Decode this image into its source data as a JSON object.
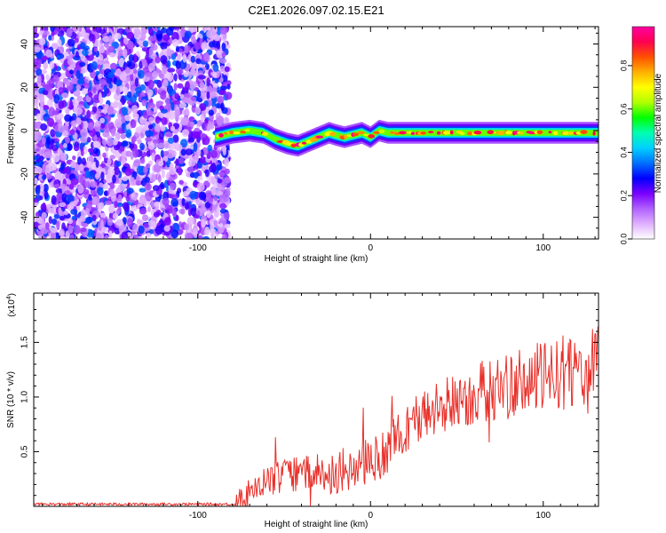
{
  "title": "C2E1.2026.097.02.15.E21",
  "chart_data": [
    {
      "type": "heatmap",
      "xlabel": "Height of straight line (km)",
      "ylabel": "Frequency (Hz)",
      "xlim": [
        -195,
        132
      ],
      "ylim": [
        -50,
        48
      ],
      "xticks": [
        -100,
        0,
        100
      ],
      "yticks": [
        -40,
        -20,
        0,
        20,
        40
      ],
      "colorbar": {
        "label": "Normalized spectral amplitude",
        "range": [
          0,
          0.98
        ],
        "ticks": [
          "0.0",
          "0.2",
          "0.4",
          "0.6",
          "0.8"
        ],
        "tick_values": [
          0.0,
          0.2,
          0.4,
          0.6,
          0.8
        ],
        "colors": [
          "#ffffff",
          "#e0b0ff",
          "#b060ff",
          "#7a00ff",
          "#0000ff",
          "#0070ff",
          "#00d0ff",
          "#00ffb0",
          "#00ff00",
          "#b0ff00",
          "#ffff00",
          "#ffb000",
          "#ff5000",
          "#ff0050",
          "#ff00a0"
        ]
      },
      "noise_region_x": [
        -195,
        -82
      ],
      "noise_region_amplitude": [
        0.05,
        0.35
      ],
      "ridge": {
        "x": [
          -90,
          -80,
          -70,
          -62,
          -55,
          -48,
          -42,
          -36,
          -30,
          -24,
          -20,
          -15,
          -10,
          -5,
          0,
          5,
          10,
          20,
          40,
          60,
          80,
          100,
          120,
          132
        ],
        "frequency": [
          -3,
          -1,
          0,
          -1,
          -4,
          -6,
          -7,
          -5,
          -3,
          -1,
          -2,
          -3,
          -2,
          -1,
          -3,
          0,
          -1,
          -1,
          -1,
          -1,
          -1,
          -1,
          -1,
          -1
        ]
      }
    },
    {
      "type": "line",
      "xlabel": "Height of straight line (km)",
      "ylabel": "SNR (10 * v/v)",
      "y_multiplier": "(x10",
      "y_multiplier_exp": "4",
      "y_multiplier_close": ")",
      "xlim": [
        -195,
        132
      ],
      "ylim": [
        0,
        1.95
      ],
      "xticks": [
        -100,
        0,
        100
      ],
      "yticks": [
        0.5,
        1.0,
        1.5
      ],
      "ytick_labels": [
        "0.5",
        "1.0",
        "1.5"
      ],
      "color": "#e8302a",
      "trend": {
        "x": [
          -195,
          -78,
          -70,
          -60,
          -50,
          -40,
          -30,
          -20,
          -10,
          0,
          10,
          20,
          30,
          40,
          50,
          60,
          70,
          80,
          90,
          100,
          110,
          120,
          132
        ],
        "y": [
          0.02,
          0.02,
          0.12,
          0.22,
          0.28,
          0.3,
          0.3,
          0.3,
          0.32,
          0.4,
          0.52,
          0.72,
          0.82,
          0.9,
          0.97,
          1.02,
          1.07,
          1.1,
          1.14,
          1.18,
          1.22,
          1.25,
          1.28
        ]
      }
    }
  ]
}
